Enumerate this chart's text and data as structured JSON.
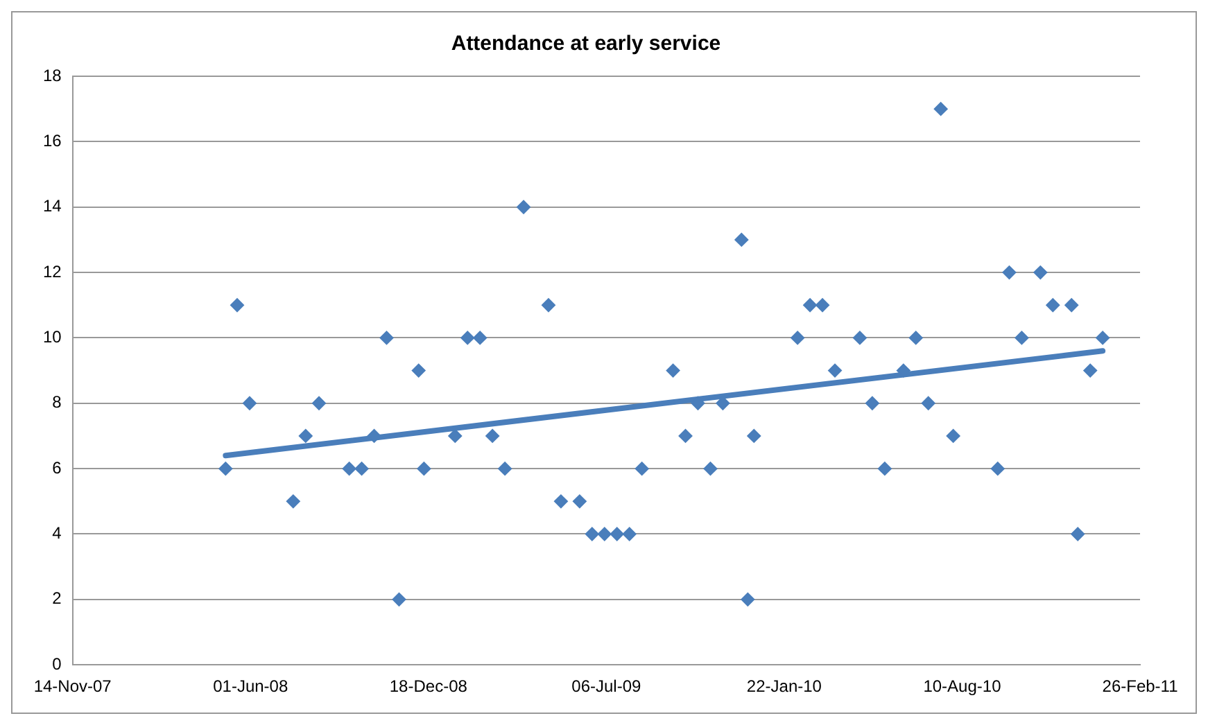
{
  "chart_data": {
    "type": "scatter",
    "title": "Attendance at early service",
    "xlim": [
      "2007-11-14",
      "2011-02-26"
    ],
    "xticks": [
      {
        "value": "2007-11-14",
        "label": "14-Nov-07"
      },
      {
        "value": "2008-06-01",
        "label": "01-Jun-08"
      },
      {
        "value": "2008-12-18",
        "label": "18-Dec-08"
      },
      {
        "value": "2009-07-06",
        "label": "06-Jul-09"
      },
      {
        "value": "2010-01-22",
        "label": "22-Jan-10"
      },
      {
        "value": "2010-08-10",
        "label": "10-Aug-10"
      },
      {
        "value": "2011-02-26",
        "label": "26-Feb-11"
      }
    ],
    "ylim": [
      0,
      18
    ],
    "yticks": [
      0,
      2,
      4,
      6,
      8,
      10,
      12,
      14,
      16,
      18
    ],
    "grid": "y",
    "series": [
      {
        "color": "#4a7ebb",
        "marker": "diamond",
        "x": [
          "2008-05-04",
          "2008-05-17",
          "2008-05-31",
          "2008-07-19",
          "2008-08-02",
          "2008-08-17",
          "2008-09-20",
          "2008-10-04",
          "2008-10-18",
          "2008-11-01",
          "2008-11-15",
          "2008-12-07",
          "2008-12-13",
          "2009-01-17",
          "2009-01-31",
          "2009-02-14",
          "2009-02-28",
          "2009-03-14",
          "2009-04-04",
          "2009-05-02",
          "2009-05-16",
          "2009-06-06",
          "2009-06-20",
          "2009-07-04",
          "2009-07-18",
          "2009-08-01",
          "2009-08-15",
          "2009-09-19",
          "2009-10-03",
          "2009-10-17",
          "2009-10-31",
          "2009-11-14",
          "2009-12-05",
          "2009-12-12",
          "2009-12-19",
          "2010-02-06",
          "2010-02-20",
          "2010-03-06",
          "2010-03-20",
          "2010-04-17",
          "2010-05-01",
          "2010-05-15",
          "2010-06-05",
          "2010-06-19",
          "2010-07-03",
          "2010-07-17",
          "2010-07-31",
          "2010-09-19",
          "2010-10-02",
          "2010-10-16",
          "2010-11-06",
          "2010-11-20",
          "2010-12-11",
          "2010-12-18",
          "2011-01-01",
          "2011-01-15"
        ],
        "values": [
          6,
          11,
          8,
          5,
          7,
          8,
          6,
          6,
          7,
          10,
          2,
          9,
          6,
          7,
          10,
          10,
          7,
          6,
          14,
          11,
          5,
          5,
          4,
          4,
          4,
          4,
          6,
          9,
          7,
          8,
          6,
          8,
          13,
          2,
          7,
          10,
          11,
          11,
          9,
          10,
          8,
          6,
          9,
          10,
          8,
          17,
          7,
          6,
          12,
          10,
          12,
          11,
          11,
          4,
          9,
          10
        ]
      },
      {
        "type": "line",
        "color": "#4a7ebb",
        "marker": "none",
        "line_style": "solid",
        "x": [
          "2008-05-04",
          "2011-01-15"
        ],
        "values": [
          6.4,
          9.6
        ]
      }
    ]
  }
}
